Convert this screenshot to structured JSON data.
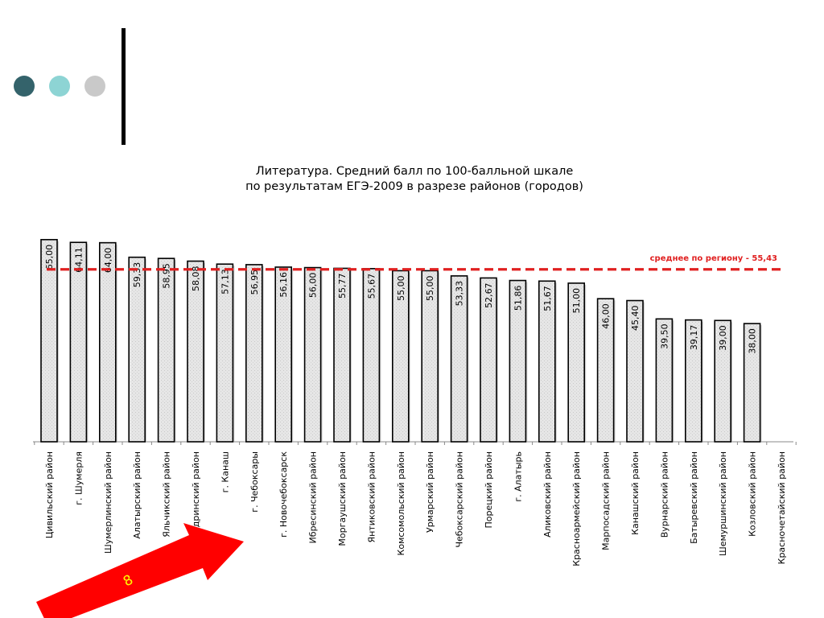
{
  "slide": {
    "dot_colors": [
      "#34636b",
      "#8dd4d4",
      "#c9c9c9"
    ],
    "arrow_label": "8",
    "arrow_color": "#ff0000",
    "arrow_label_color": "#ffff00"
  },
  "chart_data": {
    "type": "bar",
    "title_lines": [
      "Литература. Средний балл по 100-балльной шкале",
      "по результатам ЕГЭ-2009 в разрезе районов (городов)"
    ],
    "categories": [
      "Цивильский район",
      "г. Шумерля",
      "Шумерлинский район",
      "Алатырский район",
      "Яльчикский район",
      "Ядринский район",
      "г. Канаш",
      "г. Чебоксары",
      "г. Новочебоксарск",
      "Ибресинский район",
      "Моргаушский район",
      "Янтиковский район",
      "Комсомольский район",
      "Урмарский район",
      "Чебоксарский район",
      "Порецкий район",
      "г. Алатырь",
      "Аликовский район",
      "Красноармейский район",
      "Марпосадский район",
      "Канашский район",
      "Вурнарский район",
      "Батыревский район",
      "Шемуршинский район",
      "Козловский район",
      "Красночетайский район"
    ],
    "values": [
      65.0,
      64.11,
      64.0,
      59.33,
      58.95,
      58.08,
      57.13,
      56.95,
      56.16,
      56.0,
      55.77,
      55.67,
      55.0,
      55.0,
      53.33,
      52.67,
      51.86,
      51.67,
      51.0,
      46.0,
      45.4,
      39.5,
      39.17,
      39.0,
      38.0,
      null
    ],
    "value_labels": [
      "65,00",
      "64,11",
      "64,00",
      "59,33",
      "58,95",
      "58,08",
      "57,13",
      "56,95",
      "56,16",
      "56,00",
      "55,77",
      "55,67",
      "55,00",
      "55,00",
      "53,33",
      "52,67",
      "51,86",
      "51,67",
      "51,00",
      "46,00",
      "45,40",
      "39,50",
      "39,17",
      "39,00",
      "38,00",
      ""
    ],
    "reference_line": {
      "value": 55.43,
      "label": "среднее по региону - 55,43",
      "color": "#e02020",
      "style": "dashed"
    },
    "bar_fill": "#e6e6e6",
    "bar_edge": "#000000",
    "legend": "none",
    "grid": false
  }
}
